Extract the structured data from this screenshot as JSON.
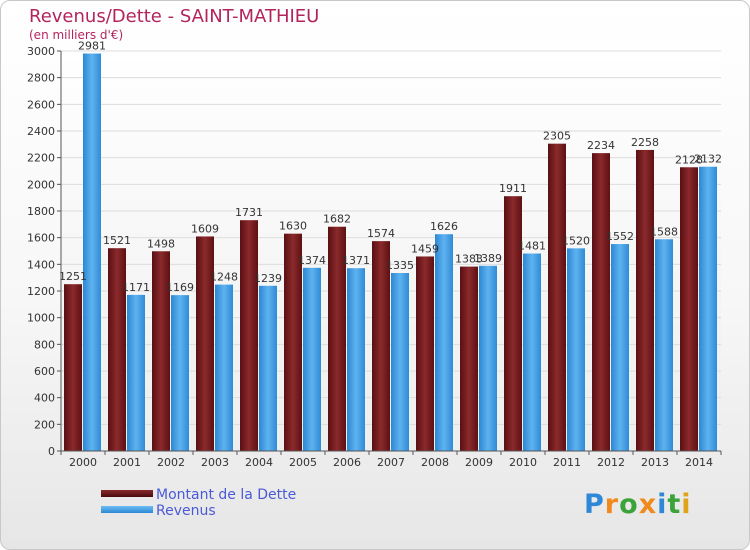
{
  "title": "Revenus/Dette - SAINT-MATHIEU",
  "subtitle": "(en milliers d'€)",
  "logo": "Proxiti",
  "colors": {
    "title": "#b3245d",
    "dette": "#7a1a1a",
    "revenus": "#3d9be0",
    "legend_text": "#4a5ad6"
  },
  "chart_data": {
    "type": "bar",
    "categories": [
      "2000",
      "2001",
      "2002",
      "2003",
      "2004",
      "2005",
      "2006",
      "2007",
      "2008",
      "2009",
      "2010",
      "2011",
      "2012",
      "2013",
      "2014"
    ],
    "series": [
      {
        "name": "Montant de la Dette",
        "values": [
          1251,
          1521,
          1498,
          1609,
          1731,
          1630,
          1682,
          1574,
          1459,
          1383,
          1911,
          2305,
          2234,
          2258,
          2128
        ]
      },
      {
        "name": "Revenus",
        "values": [
          2981,
          1171,
          1169,
          1248,
          1239,
          1374,
          1371,
          1335,
          1626,
          1389,
          1481,
          1520,
          1552,
          1588,
          2132
        ]
      }
    ],
    "labels": [
      [
        "1251",
        "1521",
        "1498",
        "1609",
        "1731",
        "1630",
        "1682",
        "1574",
        "1459",
        "1383",
        "1911",
        "2305",
        "2234",
        "2258",
        "2128"
      ],
      [
        "2981",
        "1171",
        "1169",
        "1248",
        "1239",
        "1374",
        "1371",
        "1335",
        "1626",
        "1389",
        "1481",
        "1520",
        "1552",
        "1588",
        "2132"
      ]
    ],
    "y_ticks": [
      "0",
      "200",
      "400",
      "600",
      "800",
      "1000",
      "1200",
      "1400",
      "1600",
      "1800",
      "2000",
      "2200",
      "2400",
      "2600",
      "2800",
      "3000"
    ],
    "ylim": [
      0,
      3000
    ],
    "grid": true,
    "legend_position": "bottom-left"
  }
}
